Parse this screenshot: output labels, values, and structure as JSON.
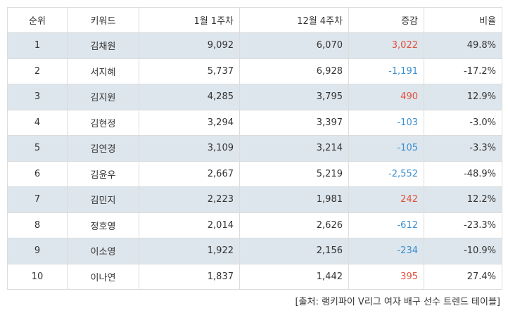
{
  "headers": {
    "rank": "순위",
    "keyword": "키워드",
    "week1": "1월 1주차",
    "week2": "12월 4주차",
    "diff": "증감",
    "rate": "비율"
  },
  "rows": [
    {
      "rank": "1",
      "keyword": "김채원",
      "week1": "9,092",
      "week2": "6,070",
      "diff": "3,022",
      "rate": "49.8%"
    },
    {
      "rank": "2",
      "keyword": "서지혜",
      "week1": "5,737",
      "week2": "6,928",
      "diff": "-1,191",
      "rate": "-17.2%"
    },
    {
      "rank": "3",
      "keyword": "김지원",
      "week1": "4,285",
      "week2": "3,795",
      "diff": "490",
      "rate": "12.9%"
    },
    {
      "rank": "4",
      "keyword": "김현정",
      "week1": "3,294",
      "week2": "3,397",
      "diff": "-103",
      "rate": "-3.0%"
    },
    {
      "rank": "5",
      "keyword": "김연경",
      "week1": "3,109",
      "week2": "3,214",
      "diff": "-105",
      "rate": "-3.3%"
    },
    {
      "rank": "6",
      "keyword": "김윤우",
      "week1": "2,667",
      "week2": "5,219",
      "diff": "-2,552",
      "rate": "-48.9%"
    },
    {
      "rank": "7",
      "keyword": "김민지",
      "week1": "2,223",
      "week2": "1,981",
      "diff": "242",
      "rate": "12.2%"
    },
    {
      "rank": "8",
      "keyword": "정호영",
      "week1": "2,014",
      "week2": "2,626",
      "diff": "-612",
      "rate": "-23.3%"
    },
    {
      "rank": "9",
      "keyword": "이소영",
      "week1": "1,922",
      "week2": "2,156",
      "diff": "-234",
      "rate": "-10.9%"
    },
    {
      "rank": "10",
      "keyword": "이나연",
      "week1": "1,837",
      "week2": "1,442",
      "diff": "395",
      "rate": "27.4%"
    }
  ],
  "source": "[출처: 랭키파이 V리그 여자 배구 선수 트렌드 테이블]",
  "colors": {
    "positive": "#e0503c",
    "negative": "#3a8fd0",
    "stripe": "#dde6ec"
  }
}
